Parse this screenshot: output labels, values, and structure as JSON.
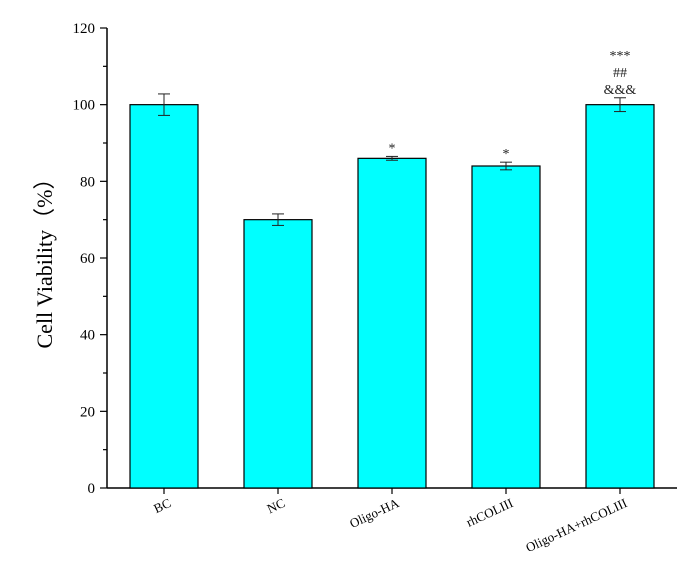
{
  "chart_data": {
    "type": "bar",
    "ylabel": "Cell Viability（%）",
    "xlabel": "",
    "ylim": [
      0,
      120
    ],
    "yticks": [
      0,
      20,
      40,
      60,
      80,
      100,
      120
    ],
    "categories": [
      "BC",
      "NC",
      "Oligo-HA",
      "rhCOLIII",
      "Oligo-HA+rhCOLIII"
    ],
    "values": [
      100,
      70,
      86,
      84,
      100
    ],
    "errors": [
      2.8,
      1.5,
      0.5,
      1.0,
      1.8
    ],
    "annotations": [
      [],
      [],
      [
        "*"
      ],
      [
        "*"
      ],
      [
        "***",
        "##",
        "&&&"
      ]
    ],
    "bar_color": "#00FFFF",
    "grid": false
  }
}
